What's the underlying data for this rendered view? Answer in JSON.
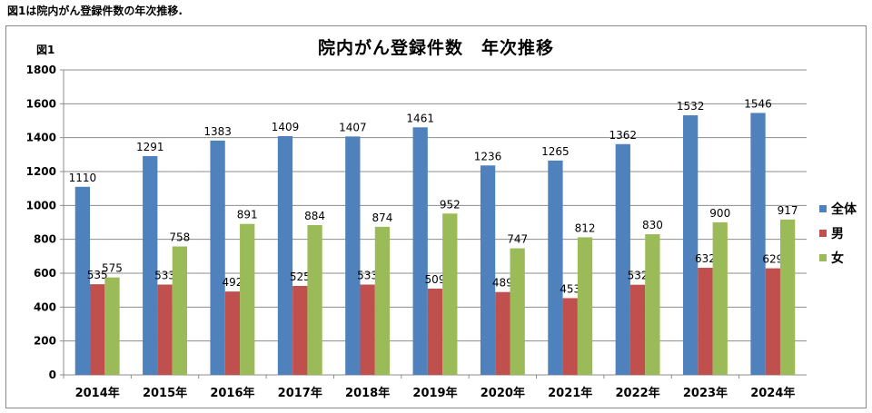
{
  "caption": "図1は院内がん登録件数の年次推移.",
  "figure_label": "図1",
  "chart_data": {
    "type": "bar",
    "title": "院内がん登録件数　年次推移",
    "categories": [
      "2014年",
      "2015年",
      "2016年",
      "2017年",
      "2018年",
      "2019年",
      "2020年",
      "2021年",
      "2022年",
      "2023年",
      "2024年"
    ],
    "series": [
      {
        "name": "全体",
        "color": "#4f81bd",
        "values": [
          1110,
          1291,
          1383,
          1409,
          1407,
          1461,
          1236,
          1265,
          1362,
          1532,
          1546
        ]
      },
      {
        "name": "男",
        "color": "#c0504d",
        "values": [
          535,
          533,
          492,
          525,
          533,
          509,
          489,
          453,
          532,
          632,
          629
        ]
      },
      {
        "name": "女",
        "color": "#9bbb59",
        "values": [
          575,
          758,
          891,
          884,
          874,
          952,
          747,
          812,
          830,
          900,
          917
        ]
      }
    ],
    "yticks": [
      0,
      200,
      400,
      600,
      800,
      1000,
      1200,
      1400,
      1600,
      1800
    ],
    "ylim": [
      0,
      1800
    ],
    "grid": true,
    "legend": "right"
  }
}
